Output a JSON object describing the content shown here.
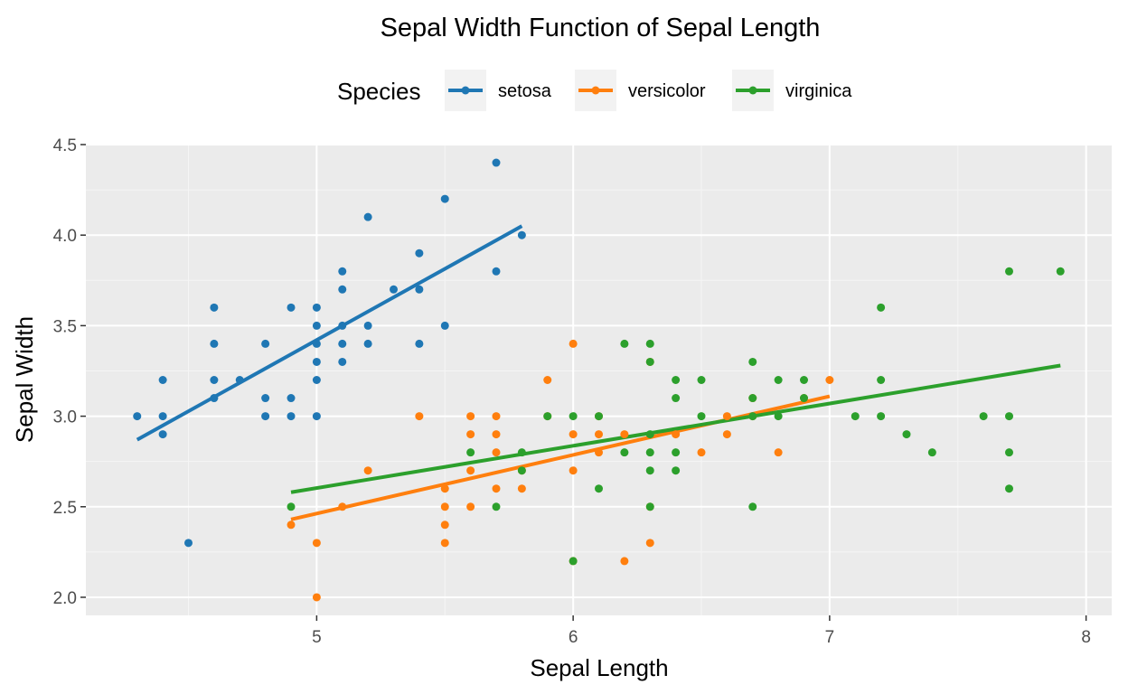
{
  "chart_data": {
    "type": "scatter",
    "title": "Sepal Width Function of Sepal Length",
    "xlabel": "Sepal Length",
    "ylabel": "Sepal Width",
    "xlim": [
      4.1,
      8.1
    ],
    "ylim": [
      1.9,
      4.5
    ],
    "x_ticks": [
      5,
      6,
      7,
      8
    ],
    "y_ticks": [
      2.0,
      2.5,
      3.0,
      3.5,
      4.0,
      4.5
    ],
    "x_tick_labels": [
      "5",
      "6",
      "7",
      "8"
    ],
    "y_tick_labels": [
      "2.0",
      "2.5",
      "3.0",
      "3.5",
      "4.0",
      "4.5"
    ],
    "grid": true,
    "legend": {
      "title": "Species",
      "position": "top"
    },
    "series": [
      {
        "name": "setosa",
        "color": "#1f77b4",
        "points": [
          [
            4.3,
            3.0
          ],
          [
            4.4,
            3.2
          ],
          [
            4.4,
            3.0
          ],
          [
            4.4,
            2.9
          ],
          [
            4.5,
            2.3
          ],
          [
            4.6,
            3.6
          ],
          [
            4.6,
            3.4
          ],
          [
            4.6,
            3.2
          ],
          [
            4.6,
            3.1
          ],
          [
            4.7,
            3.2
          ],
          [
            4.8,
            3.4
          ],
          [
            4.8,
            3.1
          ],
          [
            4.8,
            3.0
          ],
          [
            4.9,
            3.6
          ],
          [
            4.9,
            3.1
          ],
          [
            4.9,
            3.0
          ],
          [
            5.0,
            3.6
          ],
          [
            5.0,
            3.5
          ],
          [
            5.0,
            3.4
          ],
          [
            5.0,
            3.3
          ],
          [
            5.0,
            3.2
          ],
          [
            5.0,
            3.0
          ],
          [
            5.1,
            3.8
          ],
          [
            5.1,
            3.7
          ],
          [
            5.1,
            3.5
          ],
          [
            5.1,
            3.4
          ],
          [
            5.1,
            3.3
          ],
          [
            5.2,
            4.1
          ],
          [
            5.2,
            3.5
          ],
          [
            5.2,
            3.4
          ],
          [
            5.3,
            3.7
          ],
          [
            5.4,
            3.9
          ],
          [
            5.4,
            3.7
          ],
          [
            5.4,
            3.4
          ],
          [
            5.5,
            4.2
          ],
          [
            5.5,
            3.5
          ],
          [
            5.7,
            4.4
          ],
          [
            5.7,
            3.8
          ],
          [
            5.8,
            4.0
          ]
        ],
        "fit": [
          [
            4.3,
            2.87
          ],
          [
            5.8,
            4.05
          ]
        ]
      },
      {
        "name": "versicolor",
        "color": "#ff7f0e",
        "points": [
          [
            4.9,
            2.4
          ],
          [
            5.0,
            2.3
          ],
          [
            5.0,
            2.0
          ],
          [
            5.1,
            2.5
          ],
          [
            5.2,
            2.7
          ],
          [
            5.4,
            3.0
          ],
          [
            5.5,
            2.6
          ],
          [
            5.5,
            2.5
          ],
          [
            5.5,
            2.4
          ],
          [
            5.5,
            2.3
          ],
          [
            5.6,
            3.0
          ],
          [
            5.6,
            2.9
          ],
          [
            5.6,
            2.7
          ],
          [
            5.6,
            2.5
          ],
          [
            5.7,
            3.0
          ],
          [
            5.7,
            2.9
          ],
          [
            5.7,
            2.8
          ],
          [
            5.7,
            2.6
          ],
          [
            5.8,
            2.7
          ],
          [
            5.8,
            2.6
          ],
          [
            5.9,
            3.2
          ],
          [
            5.9,
            3.0
          ],
          [
            6.0,
            3.4
          ],
          [
            6.0,
            2.9
          ],
          [
            6.0,
            2.7
          ],
          [
            6.0,
            2.2
          ],
          [
            6.1,
            3.0
          ],
          [
            6.1,
            2.9
          ],
          [
            6.1,
            2.8
          ],
          [
            6.2,
            2.9
          ],
          [
            6.2,
            2.2
          ],
          [
            6.3,
            2.5
          ],
          [
            6.3,
            2.3
          ],
          [
            6.3,
            3.3
          ],
          [
            6.4,
            2.9
          ],
          [
            6.5,
            2.8
          ],
          [
            6.6,
            3.0
          ],
          [
            6.6,
            2.9
          ],
          [
            6.7,
            3.1
          ],
          [
            6.7,
            3.0
          ],
          [
            6.8,
            2.8
          ],
          [
            6.9,
            3.1
          ],
          [
            7.0,
            3.2
          ]
        ],
        "fit": [
          [
            4.9,
            2.43
          ],
          [
            7.0,
            3.11
          ]
        ]
      },
      {
        "name": "virginica",
        "color": "#2ca02c",
        "points": [
          [
            4.9,
            2.5
          ],
          [
            5.6,
            2.8
          ],
          [
            5.7,
            2.5
          ],
          [
            5.8,
            2.8
          ],
          [
            5.8,
            2.7
          ],
          [
            5.9,
            3.0
          ],
          [
            6.0,
            3.0
          ],
          [
            6.0,
            2.2
          ],
          [
            6.1,
            3.0
          ],
          [
            6.1,
            2.6
          ],
          [
            6.2,
            3.4
          ],
          [
            6.2,
            2.8
          ],
          [
            6.3,
            3.4
          ],
          [
            6.3,
            3.3
          ],
          [
            6.3,
            2.9
          ],
          [
            6.3,
            2.8
          ],
          [
            6.3,
            2.7
          ],
          [
            6.3,
            2.5
          ],
          [
            6.4,
            3.2
          ],
          [
            6.4,
            3.1
          ],
          [
            6.4,
            2.8
          ],
          [
            6.4,
            2.7
          ],
          [
            6.5,
            3.2
          ],
          [
            6.5,
            3.0
          ],
          [
            6.7,
            3.3
          ],
          [
            6.7,
            3.1
          ],
          [
            6.7,
            3.0
          ],
          [
            6.7,
            2.5
          ],
          [
            6.8,
            3.2
          ],
          [
            6.8,
            3.0
          ],
          [
            6.9,
            3.2
          ],
          [
            6.9,
            3.1
          ],
          [
            7.1,
            3.0
          ],
          [
            7.2,
            3.6
          ],
          [
            7.2,
            3.2
          ],
          [
            7.2,
            3.0
          ],
          [
            7.3,
            2.9
          ],
          [
            7.4,
            2.8
          ],
          [
            7.6,
            3.0
          ],
          [
            7.7,
            3.8
          ],
          [
            7.7,
            3.0
          ],
          [
            7.7,
            2.8
          ],
          [
            7.7,
            2.6
          ],
          [
            7.9,
            3.8
          ]
        ],
        "fit": [
          [
            4.9,
            2.58
          ],
          [
            7.9,
            3.28
          ]
        ]
      }
    ]
  }
}
